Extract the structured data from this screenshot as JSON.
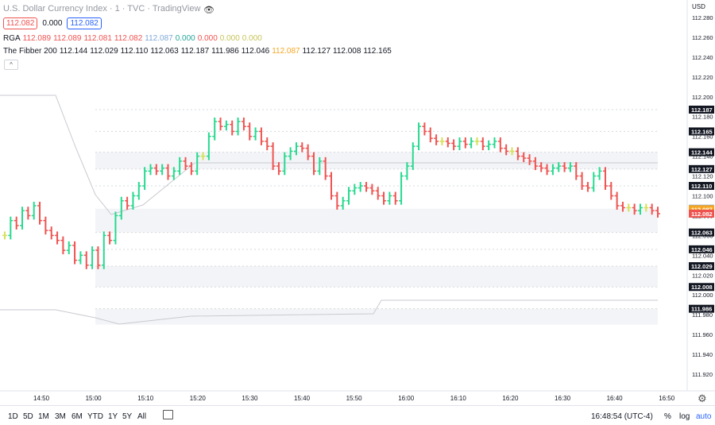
{
  "header": {
    "title": "U.S. Dollar Currency Index · 1 · TVC · TradingView",
    "bid": "112.082",
    "spread": "0.000",
    "ask": "112.082",
    "indicators": [
      {
        "name": "RGA",
        "values": [
          {
            "v": "112.089",
            "color": "#ef5350"
          },
          {
            "v": "112.089",
            "color": "#ef5350"
          },
          {
            "v": "112.081",
            "color": "#ef5350"
          },
          {
            "v": "112.082",
            "color": "#ef5350"
          },
          {
            "v": "112.087",
            "color": "#7fa8d8"
          },
          {
            "v": "0.000",
            "color": "#26a69a"
          },
          {
            "v": "0.000",
            "color": "#ef5350"
          },
          {
            "v": "0.000",
            "color": "#c7c45a"
          },
          {
            "v": "0.000",
            "color": "#c7c45a"
          }
        ]
      },
      {
        "name": "The Fibber 200",
        "values": [
          {
            "v": "112.144",
            "color": "#131722"
          },
          {
            "v": "112.029",
            "color": "#131722"
          },
          {
            "v": "112.110",
            "color": "#131722"
          },
          {
            "v": "112.063",
            "color": "#131722"
          },
          {
            "v": "112.187",
            "color": "#131722"
          },
          {
            "v": "111.986",
            "color": "#131722"
          },
          {
            "v": "112.046",
            "color": "#131722"
          },
          {
            "v": "112.087",
            "color": "#f5a623"
          },
          {
            "v": "112.127",
            "color": "#131722"
          },
          {
            "v": "112.008",
            "color": "#131722"
          },
          {
            "v": "112.165",
            "color": "#131722"
          }
        ]
      }
    ],
    "currency": "USD"
  },
  "chart_data": {
    "type": "ohlc",
    "ylim": [
      111.905,
      112.29
    ],
    "y_ticks": [
      "112.280",
      "112.260",
      "112.240",
      "112.220",
      "112.200",
      "112.180",
      "112.160",
      "112.140",
      "112.120",
      "112.100",
      "112.080",
      "112.060",
      "112.040",
      "112.020",
      "112.000",
      "111.980",
      "111.960",
      "111.940",
      "111.920"
    ],
    "x_ticks": [
      "14:50",
      "15:00",
      "15:10",
      "15:20",
      "15:30",
      "15:40",
      "15:50",
      "16:00",
      "16:10",
      "16:20",
      "16:30",
      "16:40",
      "16:50"
    ],
    "fib_levels": [
      {
        "label": "112.187",
        "value": 112.187,
        "color": "#131722"
      },
      {
        "label": "112.165",
        "value": 112.165,
        "color": "#131722"
      },
      {
        "label": "112.144",
        "value": 112.144,
        "color": "#131722"
      },
      {
        "label": "112.127",
        "value": 112.127,
        "color": "#131722"
      },
      {
        "label": "112.110",
        "value": 112.11,
        "color": "#131722"
      },
      {
        "label": "112.087",
        "value": 112.087,
        "color": "#7fa8d8"
      },
      {
        "label": "112.087",
        "value": 112.0865,
        "color": "#f5a623"
      },
      {
        "label": "112.082",
        "value": 112.082,
        "color": "#ef5350"
      },
      {
        "label": "112.063",
        "value": 112.063,
        "color": "#131722"
      },
      {
        "label": "112.046",
        "value": 112.046,
        "color": "#131722"
      },
      {
        "label": "112.029",
        "value": 112.029,
        "color": "#131722"
      },
      {
        "label": "112.008",
        "value": 112.008,
        "color": "#131722"
      },
      {
        "label": "111.986",
        "value": 111.986,
        "color": "#131722"
      }
    ],
    "up_color": "#26d98f",
    "down_color": "#ef5350",
    "neutral_color": "#d4e157",
    "bar_closes": [
      112.06,
      112.075,
      112.07,
      112.085,
      112.08,
      112.09,
      112.075,
      112.065,
      112.06,
      112.055,
      112.045,
      112.05,
      112.035,
      112.04,
      112.03,
      112.045,
      112.03,
      112.06,
      112.055,
      112.08,
      112.095,
      112.09,
      112.1,
      112.11,
      112.125,
      112.128,
      112.125,
      112.128,
      112.12,
      112.125,
      112.135,
      112.13,
      112.125,
      112.14,
      112.14,
      112.16,
      112.175,
      112.17,
      112.172,
      112.165,
      112.175,
      112.17,
      112.16,
      112.165,
      112.155,
      112.15,
      112.13,
      112.125,
      112.14,
      112.145,
      112.15,
      112.148,
      112.14,
      112.125,
      112.135,
      112.12,
      112.1,
      112.09,
      112.095,
      112.105,
      112.108,
      112.11,
      112.108,
      112.105,
      112.1,
      112.095,
      112.1,
      112.095,
      112.12,
      112.13,
      112.15,
      112.17,
      112.165,
      112.158,
      112.155,
      112.155,
      112.153,
      112.15,
      112.155,
      112.152,
      112.155,
      112.155,
      112.15,
      112.152,
      112.155,
      112.148,
      112.145,
      112.145,
      112.14,
      112.138,
      112.135,
      112.13,
      112.128,
      112.125,
      112.128,
      112.13,
      112.128,
      112.13,
      112.12,
      112.11,
      112.108,
      112.12,
      112.125,
      112.11,
      112.1,
      112.09,
      112.088,
      112.088,
      112.085,
      112.088,
      112.088,
      112.085,
      112.082
    ]
  },
  "bottom_bar": {
    "timeframes": [
      "1D",
      "5D",
      "1M",
      "3M",
      "6M",
      "YTD",
      "1Y",
      "5Y",
      "All"
    ],
    "clock": "16:48:54 (UTC-4)",
    "percent": "%",
    "log": "log",
    "auto": "auto"
  }
}
